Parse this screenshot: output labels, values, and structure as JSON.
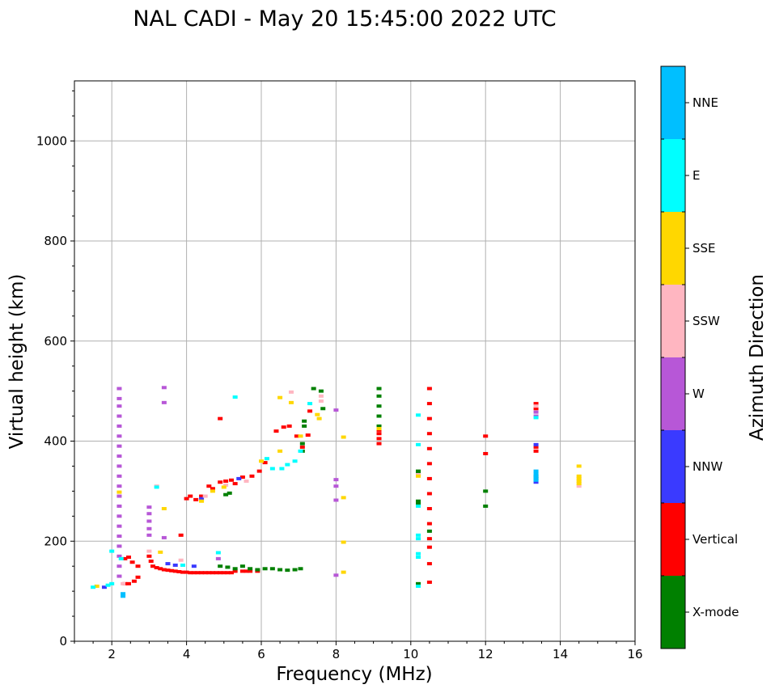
{
  "chart_data": {
    "type": "scatter",
    "title": "NAL CADI - May 20 15:45:00 2022 UTC",
    "xlabel": "Frequency (MHz)",
    "ylabel": "Virtual height (km)",
    "xlim": [
      1,
      16
    ],
    "ylim": [
      0,
      1120
    ],
    "x_ticks": [
      2,
      4,
      6,
      8,
      10,
      12,
      14,
      16
    ],
    "y_ticks": [
      0,
      200,
      400,
      600,
      800,
      1000
    ],
    "grid": true,
    "colorbar": {
      "label": "Azimuth Direction",
      "categories": [
        {
          "name": "X-mode",
          "color": "#008000"
        },
        {
          "name": "Vertical",
          "color": "#ff0000"
        },
        {
          "name": "NNW",
          "color": "#3a3aff"
        },
        {
          "name": "W",
          "color": "#b757d7"
        },
        {
          "name": "SSW",
          "color": "#ffb6c1"
        },
        {
          "name": "SSE",
          "color": "#ffd700"
        },
        {
          "name": "E",
          "color": "#00ffff"
        },
        {
          "name": "NNE",
          "color": "#00bfff"
        }
      ]
    },
    "series": [
      {
        "name": "Vertical",
        "points": [
          [
            2.35,
            165
          ],
          [
            2.45,
            168
          ],
          [
            2.55,
            158
          ],
          [
            2.7,
            150
          ],
          [
            2.35,
            115
          ],
          [
            2.45,
            115
          ],
          [
            2.6,
            120
          ],
          [
            2.7,
            128
          ],
          [
            3.0,
            170
          ],
          [
            3.05,
            160
          ],
          [
            3.1,
            150
          ],
          [
            3.2,
            147
          ],
          [
            3.3,
            145
          ],
          [
            3.4,
            143
          ],
          [
            3.5,
            142
          ],
          [
            3.6,
            141
          ],
          [
            3.7,
            140
          ],
          [
            3.8,
            139
          ],
          [
            3.85,
            212
          ],
          [
            3.9,
            138
          ],
          [
            4.0,
            138
          ],
          [
            4.1,
            137
          ],
          [
            4.2,
            137
          ],
          [
            4.3,
            137
          ],
          [
            4.4,
            137
          ],
          [
            4.5,
            137
          ],
          [
            4.6,
            137
          ],
          [
            4.7,
            137
          ],
          [
            4.8,
            137
          ],
          [
            4.9,
            137
          ],
          [
            5.0,
            137
          ],
          [
            5.1,
            137
          ],
          [
            5.2,
            137
          ],
          [
            5.3,
            140
          ],
          [
            5.5,
            140
          ],
          [
            5.6,
            140
          ],
          [
            5.7,
            140
          ],
          [
            5.9,
            140
          ],
          [
            4.0,
            285
          ],
          [
            4.1,
            290
          ],
          [
            4.25,
            283
          ],
          [
            4.4,
            290
          ],
          [
            4.6,
            310
          ],
          [
            4.7,
            305
          ],
          [
            4.9,
            318
          ],
          [
            5.05,
            320
          ],
          [
            5.2,
            322
          ],
          [
            5.3,
            315
          ],
          [
            5.5,
            328
          ],
          [
            5.75,
            330
          ],
          [
            5.95,
            340
          ],
          [
            6.1,
            357
          ],
          [
            6.4,
            420
          ],
          [
            6.6,
            428
          ],
          [
            6.75,
            430
          ],
          [
            6.95,
            410
          ],
          [
            7.1,
            388
          ],
          [
            7.25,
            412
          ],
          [
            7.3,
            460
          ],
          [
            4.9,
            445
          ],
          [
            9.15,
            395
          ],
          [
            9.15,
            405
          ],
          [
            9.15,
            415
          ],
          [
            9.15,
            422
          ],
          [
            10.5,
            505
          ],
          [
            10.5,
            475
          ],
          [
            10.5,
            445
          ],
          [
            10.5,
            415
          ],
          [
            10.5,
            385
          ],
          [
            10.5,
            355
          ],
          [
            10.5,
            325
          ],
          [
            10.5,
            295
          ],
          [
            10.5,
            265
          ],
          [
            10.5,
            235
          ],
          [
            10.5,
            205
          ],
          [
            10.5,
            188
          ],
          [
            10.5,
            155
          ],
          [
            10.5,
            118
          ],
          [
            12.0,
            410
          ],
          [
            12.0,
            375
          ],
          [
            13.35,
            380
          ],
          [
            13.35,
            388
          ],
          [
            13.35,
            465
          ],
          [
            13.35,
            475
          ]
        ]
      },
      {
        "name": "X-mode",
        "points": [
          [
            4.9,
            150
          ],
          [
            5.1,
            148
          ],
          [
            5.3,
            145
          ],
          [
            5.5,
            150
          ],
          [
            5.7,
            145
          ],
          [
            5.9,
            143
          ],
          [
            6.1,
            145
          ],
          [
            6.3,
            145
          ],
          [
            6.5,
            143
          ],
          [
            6.7,
            142
          ],
          [
            6.9,
            143
          ],
          [
            7.05,
            145
          ],
          [
            5.05,
            293
          ],
          [
            5.15,
            296
          ],
          [
            7.1,
            380
          ],
          [
            7.1,
            395
          ],
          [
            7.15,
            430
          ],
          [
            7.15,
            440
          ],
          [
            7.4,
            505
          ],
          [
            7.6,
            500
          ],
          [
            7.65,
            465
          ],
          [
            9.15,
            430
          ],
          [
            9.15,
            450
          ],
          [
            9.15,
            470
          ],
          [
            9.15,
            490
          ],
          [
            9.15,
            505
          ],
          [
            10.2,
            340
          ],
          [
            10.2,
            335
          ],
          [
            10.2,
            280
          ],
          [
            10.2,
            275
          ],
          [
            10.2,
            115
          ],
          [
            10.5,
            220
          ],
          [
            12.0,
            300
          ],
          [
            12.0,
            270
          ],
          [
            13.35,
            325
          ],
          [
            13.35,
            330
          ]
        ]
      },
      {
        "name": "NNW",
        "points": [
          [
            1.8,
            108
          ],
          [
            3.5,
            155
          ],
          [
            3.7,
            152
          ],
          [
            4.2,
            150
          ],
          [
            4.4,
            285
          ],
          [
            5.4,
            325
          ],
          [
            13.35,
            393
          ],
          [
            13.35,
            318
          ]
        ]
      },
      {
        "name": "W",
        "points": [
          [
            2.2,
            505
          ],
          [
            2.2,
            485
          ],
          [
            2.2,
            470
          ],
          [
            2.2,
            450
          ],
          [
            2.2,
            430
          ],
          [
            2.2,
            410
          ],
          [
            2.2,
            390
          ],
          [
            2.2,
            370
          ],
          [
            2.2,
            350
          ],
          [
            2.2,
            330
          ],
          [
            2.2,
            310
          ],
          [
            2.2,
            290
          ],
          [
            2.2,
            270
          ],
          [
            2.2,
            250
          ],
          [
            2.2,
            230
          ],
          [
            2.2,
            210
          ],
          [
            2.2,
            190
          ],
          [
            2.2,
            170
          ],
          [
            2.2,
            150
          ],
          [
            2.2,
            130
          ],
          [
            3.0,
            268
          ],
          [
            3.0,
            255
          ],
          [
            3.0,
            240
          ],
          [
            3.0,
            225
          ],
          [
            3.0,
            212
          ],
          [
            3.4,
            507
          ],
          [
            3.4,
            477
          ],
          [
            3.4,
            207
          ],
          [
            4.85,
            165
          ],
          [
            8.0,
            462
          ],
          [
            8.0,
            323
          ],
          [
            8.0,
            310
          ],
          [
            8.0,
            282
          ],
          [
            8.0,
            132
          ],
          [
            13.35,
            450
          ],
          [
            13.35,
            458
          ]
        ]
      },
      {
        "name": "SSW",
        "points": [
          [
            2.3,
            115
          ],
          [
            3.0,
            180
          ],
          [
            3.2,
            310
          ],
          [
            3.85,
            162
          ],
          [
            4.5,
            290
          ],
          [
            5.05,
            312
          ],
          [
            5.6,
            320
          ],
          [
            6.8,
            498
          ],
          [
            7.6,
            480
          ],
          [
            7.6,
            490
          ],
          [
            10.2,
            333
          ],
          [
            13.35,
            470
          ],
          [
            14.5,
            310
          ]
        ]
      },
      {
        "name": "SSE",
        "points": [
          [
            1.6,
            110
          ],
          [
            2.2,
            298
          ],
          [
            3.4,
            265
          ],
          [
            3.3,
            178
          ],
          [
            4.4,
            280
          ],
          [
            4.7,
            300
          ],
          [
            5.0,
            308
          ],
          [
            6.0,
            360
          ],
          [
            6.5,
            380
          ],
          [
            6.5,
            487
          ],
          [
            6.8,
            477
          ],
          [
            7.05,
            410
          ],
          [
            7.5,
            453
          ],
          [
            7.55,
            445
          ],
          [
            8.2,
            408
          ],
          [
            8.2,
            287
          ],
          [
            8.2,
            198
          ],
          [
            8.2,
            138
          ],
          [
            9.15,
            425
          ],
          [
            10.2,
            330
          ],
          [
            14.5,
            350
          ],
          [
            14.5,
            330
          ],
          [
            14.5,
            325
          ],
          [
            14.5,
            320
          ],
          [
            14.5,
            315
          ]
        ]
      },
      {
        "name": "E",
        "points": [
          [
            1.5,
            108
          ],
          [
            1.9,
            112
          ],
          [
            2.0,
            115
          ],
          [
            2.25,
            165
          ],
          [
            2.0,
            180
          ],
          [
            3.2,
            308
          ],
          [
            3.9,
            152
          ],
          [
            4.85,
            177
          ],
          [
            5.3,
            488
          ],
          [
            6.15,
            365
          ],
          [
            6.3,
            345
          ],
          [
            6.55,
            345
          ],
          [
            6.7,
            353
          ],
          [
            6.9,
            360
          ],
          [
            7.05,
            380
          ],
          [
            7.3,
            475
          ],
          [
            10.2,
            452
          ],
          [
            10.2,
            393
          ],
          [
            10.2,
            270
          ],
          [
            10.2,
            212
          ],
          [
            10.2,
            205
          ],
          [
            10.2,
            175
          ],
          [
            10.2,
            168
          ],
          [
            10.2,
            110
          ],
          [
            13.35,
            447
          ]
        ]
      },
      {
        "name": "NNE",
        "points": [
          [
            2.3,
            90
          ],
          [
            2.3,
            95
          ],
          [
            13.35,
            335
          ],
          [
            13.35,
            340
          ],
          [
            13.35,
            330
          ],
          [
            13.35,
            325
          ],
          [
            13.35,
            322
          ]
        ]
      }
    ]
  }
}
